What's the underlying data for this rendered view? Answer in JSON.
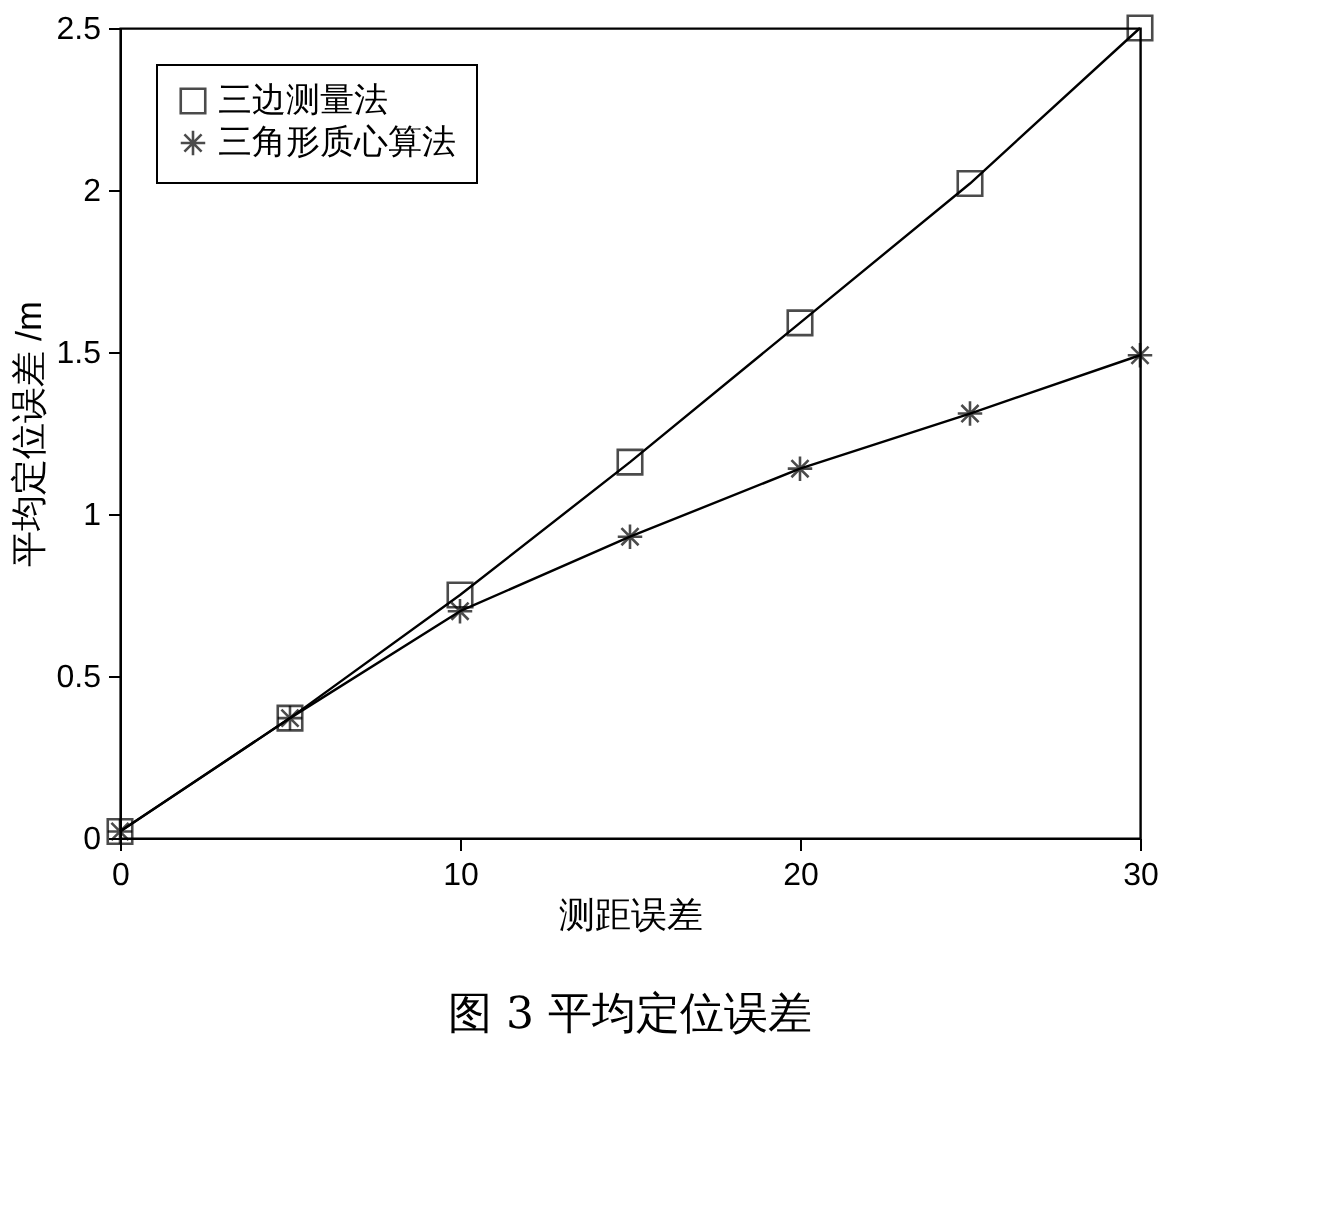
{
  "chart_data": {
    "type": "line",
    "title": "图 3   平均定位误差",
    "xlabel": "测距误差",
    "ylabel": "平均定位误差 /m",
    "x": [
      0,
      5,
      10,
      15,
      20,
      25,
      30
    ],
    "series": [
      {
        "name": "三边测量法",
        "color": "#000000",
        "marker": "square",
        "values": [
          0.02,
          0.37,
          0.75,
          1.16,
          1.59,
          2.02,
          2.5
        ]
      },
      {
        "name": "三角形质心算法",
        "color": "#000000",
        "marker": "cross",
        "values": [
          0.02,
          0.37,
          0.7,
          0.93,
          1.14,
          1.31,
          1.49
        ]
      }
    ],
    "xlim": [
      0,
      30
    ],
    "xticks": [
      0,
      10,
      20,
      30
    ],
    "ylim": [
      0,
      2.5
    ],
    "yticks": [
      0,
      0.5,
      1,
      1.5,
      2,
      2.5
    ],
    "grid": false,
    "legend": "top left",
    "line_style": "solid"
  }
}
